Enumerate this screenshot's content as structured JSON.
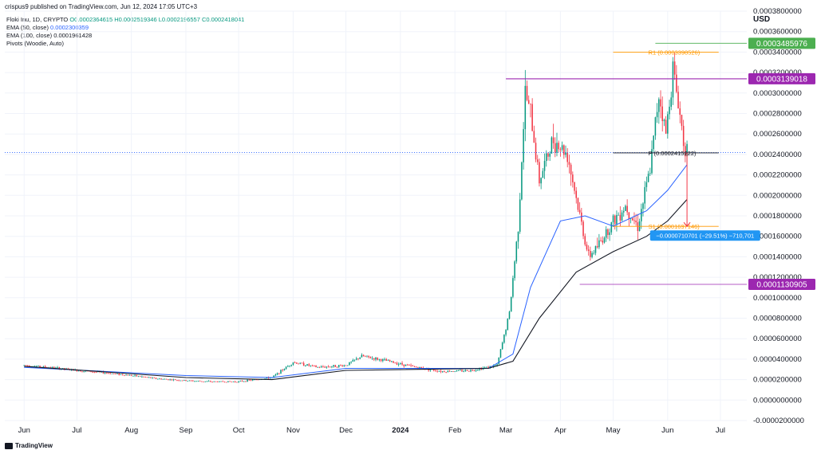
{
  "header": {
    "published_by": "crispus9 published on TradingView.com, Jun 12, 2024 17:05 UTC+3"
  },
  "legend": {
    "symbol": "Floki Inu, 1D, CRYPTO",
    "open": "O0.0002364615",
    "high": "H0.0002519346",
    "low": "L0.0002196557",
    "close": "C0.0002418041",
    "ema50_label": "EMA (50, close)",
    "ema50_value": "0.0002300359",
    "ema100_label": "EMA (100, close)",
    "ema100_value": "0.0001961428",
    "pivots_label": "Pivots (Woodie, Auto)"
  },
  "branding": "TradingView",
  "currency": "USD",
  "colors": {
    "up": "#089981",
    "down": "#f23645",
    "ema50": "#2962ff",
    "ema100": "#131722",
    "resistance": "#9c27b0",
    "pivot_r1": "#ff9800",
    "high_marker": "#4caf50",
    "measure": "#2196f3",
    "grid": "#f0f3fa"
  },
  "chart_data": {
    "type": "candlestick",
    "x_labels": [
      "Jun",
      "Jul",
      "Aug",
      "Sep",
      "Oct",
      "Nov",
      "Dec",
      "2024",
      "Feb",
      "Mar",
      "Apr",
      "May",
      "Jun",
      "Jul"
    ],
    "y_ticks": [
      "0.0003800000",
      "0.0003600000",
      "0.0003400000",
      "0.0003200000",
      "0.0003000000",
      "0.0002800000",
      "0.0002600000",
      "0.0002400000",
      "0.0002200000",
      "0.0002000000",
      "0.0001800000",
      "0.0001600000",
      "0.0001400000",
      "0.0001200000",
      "0.0001000000",
      "0.0000800000",
      "0.0000600000",
      "0.0000400000",
      "0.0000200000",
      "0.0000000000",
      "-0.0000200000"
    ],
    "ylim": [
      -2e-05,
      0.00038
    ],
    "price_labels": [
      {
        "text": "0.0003485976",
        "value": 0.0003485976,
        "color": "#4caf50"
      },
      {
        "text": "0.0003139018",
        "value": 0.0003139018,
        "color": "#9c27b0"
      },
      {
        "text": "0.0001130905",
        "value": 0.0001130905,
        "color": "#9c27b0"
      }
    ],
    "pivot_labels": {
      "r1": "R1 (0.0003398526)",
      "p": "P (0.0002415222)",
      "s1": "S1 (0.0001697146)"
    },
    "measure_label": "−0.0000710701 (−29.51%) −710,701",
    "price_path": [
      [
        "2023-06-01",
        3.4e-05
      ],
      [
        "2023-06-15",
        3.2e-05
      ],
      [
        "2023-07-01",
        2.9e-05
      ],
      [
        "2023-07-15",
        2.7e-05
      ],
      [
        "2023-08-01",
        2.4e-05
      ],
      [
        "2023-08-15",
        2.1e-05
      ],
      [
        "2023-09-01",
        1.9e-05
      ],
      [
        "2023-09-15",
        1.8e-05
      ],
      [
        "2023-10-01",
        1.8e-05
      ],
      [
        "2023-10-20",
        2.2e-05
      ],
      [
        "2023-11-01",
        3.7e-05
      ],
      [
        "2023-11-15",
        3.2e-05
      ],
      [
        "2023-12-01",
        3.4e-05
      ],
      [
        "2023-12-10",
        4.3e-05
      ],
      [
        "2023-12-25",
        3.8e-05
      ],
      [
        "2024-01-10",
        3.2e-05
      ],
      [
        "2024-01-25",
        2.8e-05
      ],
      [
        "2024-02-10",
        2.9e-05
      ],
      [
        "2024-02-25",
        3.4e-05
      ],
      [
        "2024-03-03",
        8.5e-05
      ],
      [
        "2024-03-08",
        0.00017
      ],
      [
        "2024-03-12",
        0.0003
      ],
      [
        "2024-03-15",
        0.00028
      ],
      [
        "2024-03-20",
        0.000215
      ],
      [
        "2024-03-28",
        0.000255
      ],
      [
        "2024-04-05",
        0.00024
      ],
      [
        "2024-04-12",
        0.00018
      ],
      [
        "2024-04-17",
        0.00014
      ],
      [
        "2024-04-22",
        0.00015
      ],
      [
        "2024-05-01",
        0.000175
      ],
      [
        "2024-05-08",
        0.00019
      ],
      [
        "2024-05-15",
        0.00017
      ],
      [
        "2024-05-22",
        0.000225
      ],
      [
        "2024-05-27",
        0.0003
      ],
      [
        "2024-05-31",
        0.00026
      ],
      [
        "2024-06-04",
        0.000325
      ],
      [
        "2024-06-07",
        0.00029
      ],
      [
        "2024-06-10",
        0.000255
      ],
      [
        "2024-06-12",
        0.000242
      ]
    ],
    "ema50_path": [
      [
        "2023-06-01",
        3.2e-05
      ],
      [
        "2023-09-01",
        2.4e-05
      ],
      [
        "2023-10-20",
        2.2e-05
      ],
      [
        "2023-12-01",
        3.1e-05
      ],
      [
        "2024-02-20",
        3.1e-05
      ],
      [
        "2024-03-05",
        4.5e-05
      ],
      [
        "2024-03-15",
        0.00011
      ],
      [
        "2024-04-01",
        0.000175
      ],
      [
        "2024-04-15",
        0.00018
      ],
      [
        "2024-05-01",
        0.00017
      ],
      [
        "2024-05-20",
        0.000185
      ],
      [
        "2024-06-01",
        0.000205
      ],
      [
        "2024-06-12",
        0.00023
      ]
    ],
    "ema100_path": [
      [
        "2023-06-01",
        3.3e-05
      ],
      [
        "2023-09-01",
        2.2e-05
      ],
      [
        "2023-10-20",
        2e-05
      ],
      [
        "2023-12-01",
        2.9e-05
      ],
      [
        "2024-02-20",
        3.1e-05
      ],
      [
        "2024-03-05",
        3.8e-05
      ],
      [
        "2024-03-20",
        8e-05
      ],
      [
        "2024-04-10",
        0.000125
      ],
      [
        "2024-05-01",
        0.000145
      ],
      [
        "2024-05-20",
        0.00016
      ],
      [
        "2024-06-01",
        0.000175
      ],
      [
        "2024-06-12",
        0.000196
      ]
    ]
  }
}
